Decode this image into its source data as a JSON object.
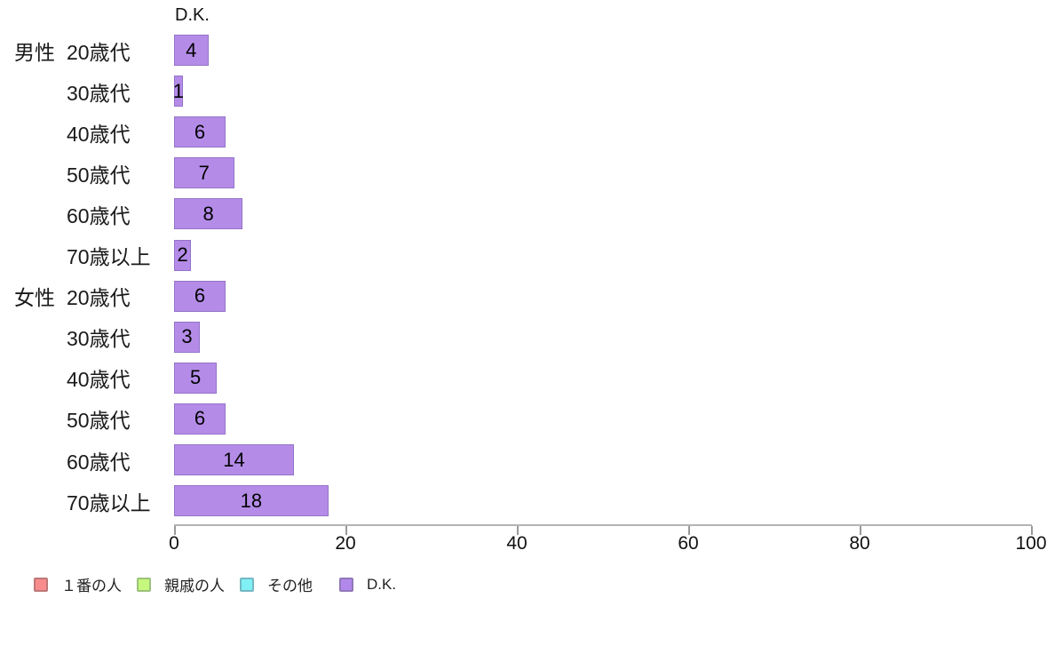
{
  "chart_data": {
    "type": "bar",
    "orientation": "horizontal",
    "header_label": "D.K.",
    "series_shown": "D.K.",
    "categories": [
      {
        "group": "男性",
        "age": "20歳代"
      },
      {
        "group": "",
        "age": "30歳代"
      },
      {
        "group": "",
        "age": "40歳代"
      },
      {
        "group": "",
        "age": "50歳代"
      },
      {
        "group": "",
        "age": "60歳代"
      },
      {
        "group": "",
        "age": "70歳以上"
      },
      {
        "group": "女性",
        "age": "20歳代"
      },
      {
        "group": "",
        "age": "30歳代"
      },
      {
        "group": "",
        "age": "40歳代"
      },
      {
        "group": "",
        "age": "50歳代"
      },
      {
        "group": "",
        "age": "60歳代"
      },
      {
        "group": "",
        "age": "70歳以上"
      }
    ],
    "values": [
      4,
      1,
      6,
      7,
      8,
      2,
      6,
      3,
      5,
      6,
      14,
      18
    ],
    "xlim": [
      0,
      100
    ],
    "x_ticks": [
      0,
      20,
      40,
      60,
      80,
      100
    ],
    "grid": false,
    "bar_fill": "#b48ce8",
    "bar_border": "#9473c8",
    "axis_color": "#b3b3b3",
    "tick_color": "#999999",
    "legend": {
      "position": "bottom-left",
      "entries": [
        {
          "label": "１番の人",
          "fill": "#f88c8c",
          "border": "#bc7878"
        },
        {
          "label": "親戚の人",
          "fill": "#c6f87e",
          "border": "#9cc27c"
        },
        {
          "label": "その他",
          "fill": "#80f0f4",
          "border": "#74b8c4"
        },
        {
          "label": "D.K.",
          "fill": "#b388ec",
          "border": "#9078b8"
        }
      ]
    }
  }
}
